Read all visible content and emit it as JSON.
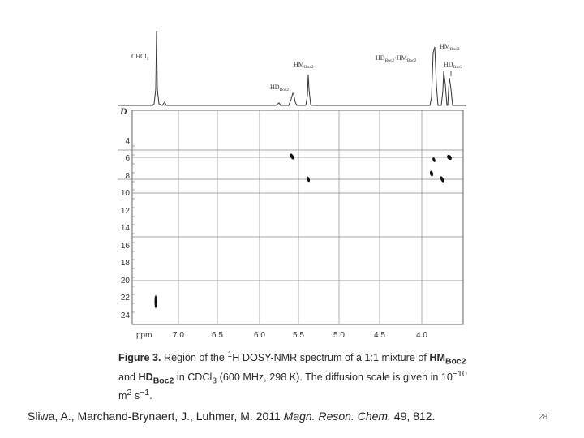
{
  "spectrum": {
    "peak_labels": {
      "chcl3": "CHCl",
      "chcl3_sub": "3",
      "hm": "HM",
      "hd": "HD",
      "boc2": "Boc2",
      "dot": "·"
    },
    "d_axis_label": "D",
    "d_ticks": [
      "4",
      "6",
      "8",
      "10",
      "12",
      "14",
      "16",
      "18",
      "20",
      "22",
      "24"
    ],
    "ppm_label": "ppm",
    "ppm_ticks": [
      "7.0",
      "6.5",
      "6.0",
      "5.5",
      "5.0",
      "4.5",
      "4.0"
    ]
  },
  "caption": {
    "figure_label": "Figure 3.",
    "text_1": " Region of the ",
    "sup_1": "1",
    "text_2": "H DOSY-NMR spectrum of a 1:1 mixture of ",
    "hm": "HM",
    "boc2": "Boc2",
    "and": " and ",
    "hd": "HD",
    "text_3": " in CDCl",
    "sub_3": "3",
    "text_4": " (600 MHz, 298 K). The diffusion scale is given in 10",
    "exp_1": "−10",
    "text_5": " m",
    "exp_2": "2",
    "text_6": " s",
    "exp_3": "−1",
    "text_7": "."
  },
  "citation": {
    "authors": "Sliwa, A., Marchand-Brynaert, J., Luhmer, M. 2011 ",
    "journal": "Magn. Reson. Chem.",
    "volume_pages": " 49, 812."
  },
  "page_number": "28"
}
